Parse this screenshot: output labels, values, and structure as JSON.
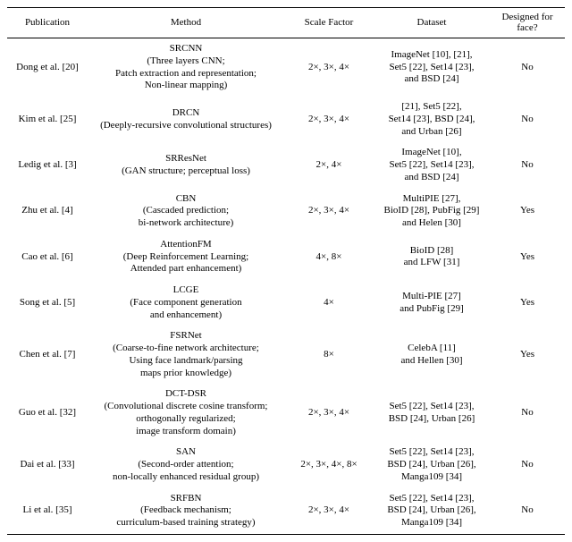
{
  "table": {
    "headers": [
      "Publication",
      "Method",
      "Scale Factor",
      "Dataset",
      "Designed for face?"
    ],
    "colors": {
      "text": "#000000",
      "rule": "#000000",
      "background": "#ffffff"
    },
    "font": {
      "family": "Times New Roman",
      "size_pt": 9
    },
    "rows": [
      {
        "publication": "Dong et al. [20]",
        "method": "SRCNN\n(Three layers CNN;\nPatch extraction and representation;\nNon-linear mapping)",
        "scale": "2×, 3×, 4×",
        "dataset": "ImageNet [10], [21],\nSet5 [22], Set14 [23],\nand BSD [24]",
        "face": "No"
      },
      {
        "publication": "Kim et al. [25]",
        "method": "DRCN\n(Deeply-recursive convolutional structures)",
        "scale": "2×, 3×, 4×",
        "dataset": "[21], Set5 [22],\nSet14 [23], BSD [24],\nand Urban [26]",
        "face": "No"
      },
      {
        "publication": "Ledig et al. [3]",
        "method": "SRResNet\n(GAN structure; perceptual loss)",
        "scale": "2×, 4×",
        "dataset": "ImageNet [10],\nSet5 [22], Set14 [23],\nand BSD [24]",
        "face": "No"
      },
      {
        "publication": "Zhu et al. [4]",
        "method": "CBN\n(Cascaded prediction;\nbi-network architecture)",
        "scale": "2×, 3×, 4×",
        "dataset": "MultiPIE [27],\nBioID [28], PubFig [29]\nand Helen [30]",
        "face": "Yes"
      },
      {
        "publication": "Cao et al. [6]",
        "method": "AttentionFM\n(Deep Reinforcement Learning;\nAttended part enhancement)",
        "scale": "4×, 8×",
        "dataset": "BioID [28]\nand LFW [31]",
        "face": "Yes"
      },
      {
        "publication": "Song et al. [5]",
        "method": "LCGE\n(Face component generation\nand enhancement)",
        "scale": "4×",
        "dataset": "Multi-PIE [27]\nand PubFig [29]",
        "face": "Yes"
      },
      {
        "publication": "Chen et al. [7]",
        "method": "FSRNet\n(Coarse-to-fine network architecture;\nUsing face landmark/parsing\nmaps prior knowledge)",
        "scale": "8×",
        "dataset": "CelebA [11]\nand Hellen [30]",
        "face": "Yes"
      },
      {
        "publication": "Guo et al. [32]",
        "method": "DCT-DSR\n(Convolutional discrete cosine transform;\northogonally regularized;\nimage transform domain)",
        "scale": "2×, 3×, 4×",
        "dataset": "Set5 [22], Set14 [23],\nBSD [24], Urban [26]",
        "face": "No"
      },
      {
        "publication": "Dai et al. [33]",
        "method": "SAN\n(Second-order attention;\nnon-locally enhanced residual group)",
        "scale": "2×, 3×, 4×, 8×",
        "dataset": "Set5 [22], Set14 [23],\nBSD [24], Urban [26],\nManga109 [34]",
        "face": "No"
      },
      {
        "publication": "Li et al. [35]",
        "method": "SRFBN\n(Feedback mechanism;\ncurriculum-based training strategy)",
        "scale": "2×, 3×, 4×",
        "dataset": "Set5 [22], Set14 [23],\nBSD [24], Urban [26],\nManga109 [34]",
        "face": "No"
      }
    ]
  }
}
